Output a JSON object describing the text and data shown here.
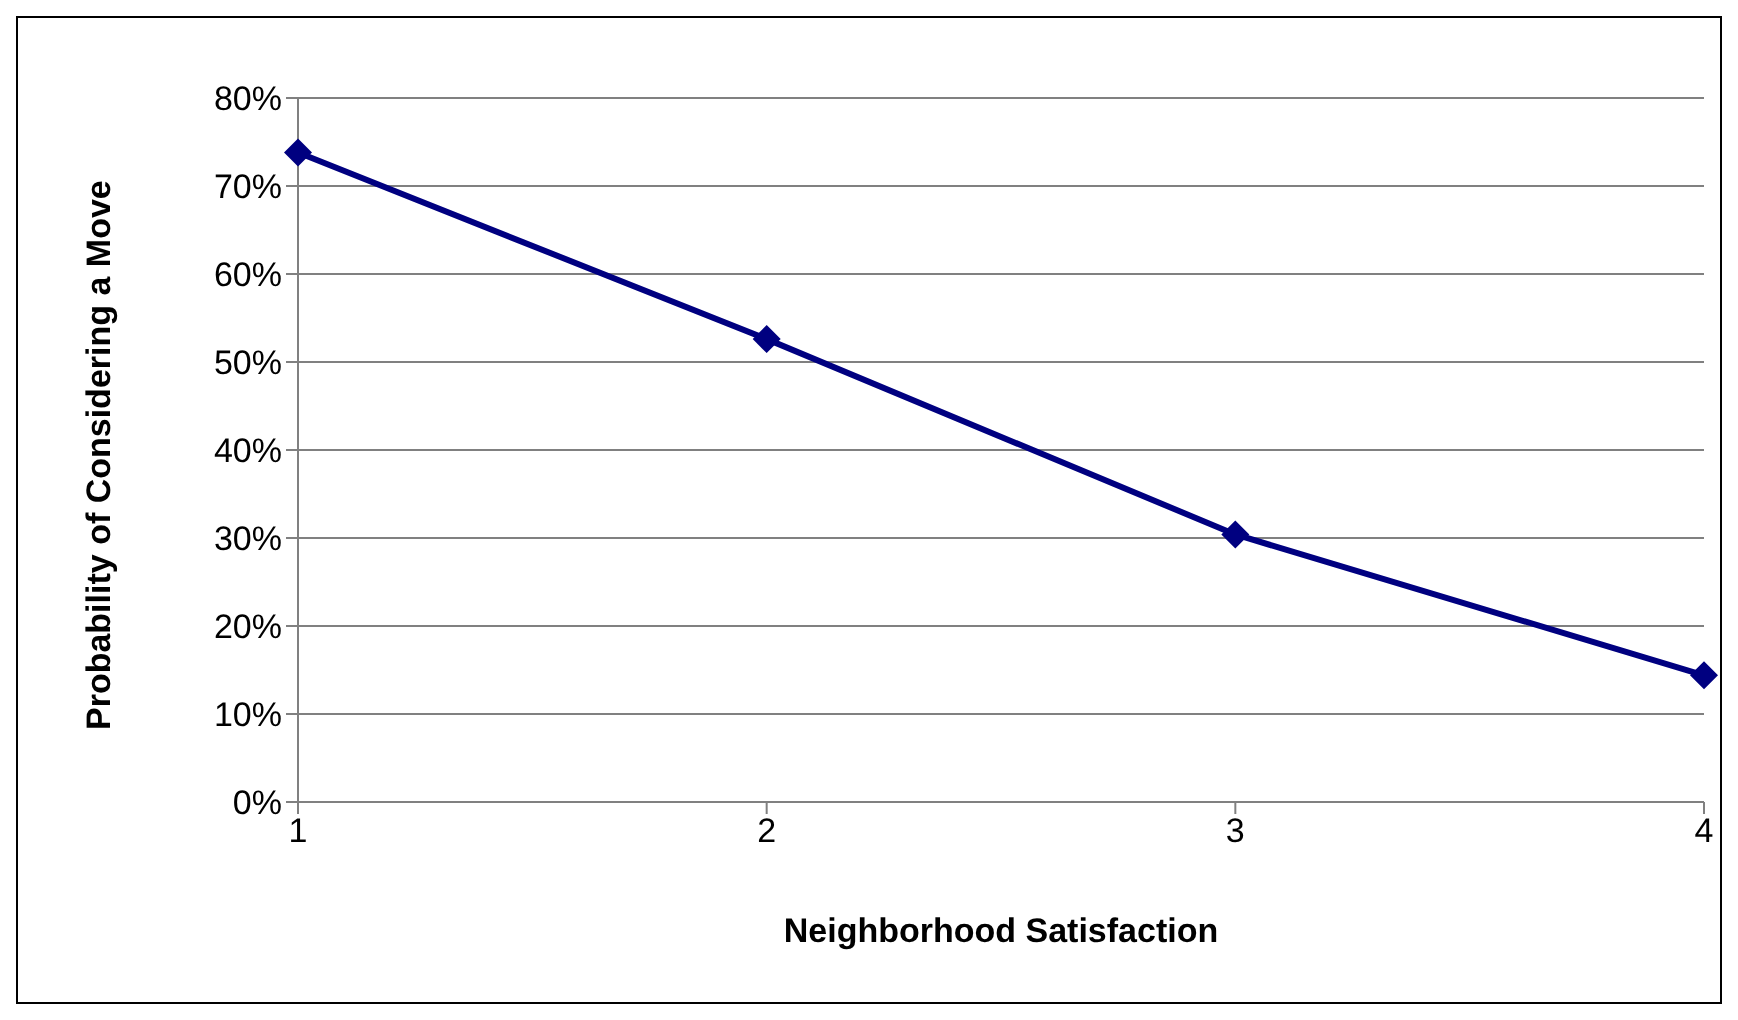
{
  "chart_data": {
    "type": "line",
    "xlabel": "Neighborhood Satisfaction",
    "ylabel": "Probability of Considering a Move",
    "categories": [
      "1",
      "2",
      "3",
      "4"
    ],
    "series": [
      {
        "color": "#000080",
        "values": [
          73.8,
          52.6,
          30.4,
          14.4
        ]
      }
    ],
    "ylim": [
      0,
      80
    ],
    "yticks": [
      {
        "value": 0,
        "label": "0%"
      },
      {
        "value": 10,
        "label": "10%"
      },
      {
        "value": 20,
        "label": "20%"
      },
      {
        "value": 30,
        "label": "30%"
      },
      {
        "value": 40,
        "label": "40%"
      },
      {
        "value": 50,
        "label": "50%"
      },
      {
        "value": 60,
        "label": "60%"
      },
      {
        "value": 70,
        "label": "70%"
      },
      {
        "value": 80,
        "label": "80%"
      }
    ],
    "grid": "y",
    "marker": "diamond",
    "line_style": "solid"
  }
}
